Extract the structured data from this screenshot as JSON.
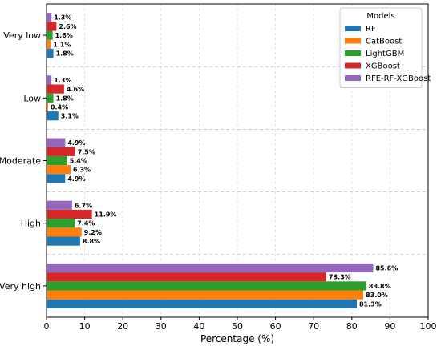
{
  "chart_data": {
    "type": "bar",
    "orientation": "horizontal",
    "categories": [
      "Very low",
      "Low",
      "Moderate",
      "High",
      "Very high"
    ],
    "series": [
      {
        "name": "RF",
        "color": "#1f77b4",
        "values": [
          1.8,
          3.1,
          4.9,
          8.8,
          81.3
        ]
      },
      {
        "name": "CatBoost",
        "color": "#ff7f0e",
        "values": [
          1.1,
          0.4,
          6.3,
          9.2,
          83.0
        ]
      },
      {
        "name": "LightGBM",
        "color": "#2ca02c",
        "values": [
          1.6,
          1.8,
          5.4,
          7.4,
          83.8
        ]
      },
      {
        "name": "XGBoost",
        "color": "#d62728",
        "values": [
          2.6,
          4.6,
          7.5,
          11.9,
          73.3
        ]
      },
      {
        "name": "RFE-RF-XGBoost",
        "color": "#9467bd",
        "values": [
          1.3,
          1.3,
          4.9,
          6.7,
          85.6
        ]
      }
    ],
    "xlabel": "Percentage (%)",
    "ylabel": "",
    "xlim": [
      0,
      100
    ],
    "xticks": [
      0,
      10,
      20,
      30,
      40,
      50,
      60,
      70,
      80,
      90,
      100
    ],
    "legend_title": "Models",
    "legend_position": "top-right",
    "grid": "vertical dashed gridlines at x ticks; dashed horizontal separators between categories",
    "value_suffix": "%"
  }
}
